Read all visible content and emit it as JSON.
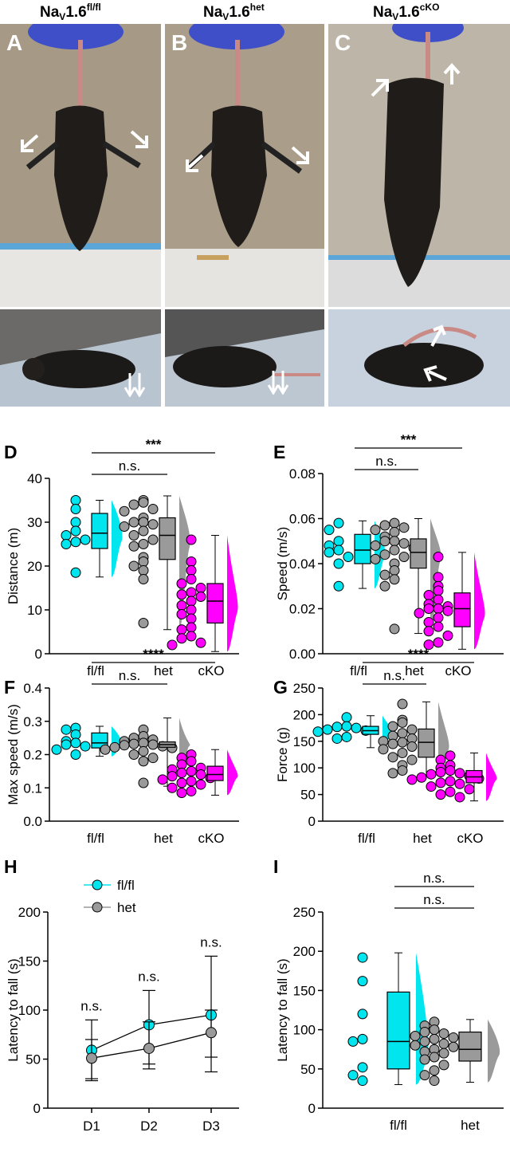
{
  "headers": [
    {
      "base": "Na",
      "sub": "V",
      "mid": "1.6",
      "sup": "fl/fl"
    },
    {
      "base": "Na",
      "sub": "V",
      "mid": "1.6",
      "sup": "het"
    },
    {
      "base": "Na",
      "sub": "V",
      "mid": "1.6",
      "sup": "cKO"
    }
  ],
  "photo_panels": [
    "A",
    "B",
    "C"
  ],
  "colors": {
    "flfl": "#00e5ee",
    "het": "#9a9a9a",
    "cko": "#ff00ff",
    "arrow": "#ffffff"
  },
  "chart_data": [
    {
      "panel": "D",
      "type": "scatter+box+violin",
      "ylabel": "Distance (m)",
      "ylim": [
        0,
        40
      ],
      "yticks": [
        0,
        10,
        20,
        30,
        40
      ],
      "categories": [
        "fl/fl",
        "het",
        "cKO"
      ],
      "series": [
        {
          "name": "fl/fl",
          "values": [
            35,
            33,
            30,
            28,
            27,
            26,
            25.5,
            25,
            18.5
          ],
          "box": {
            "min": 17.5,
            "q1": 24,
            "median": 27.5,
            "q3": 32,
            "max": 35
          }
        },
        {
          "name": "het",
          "values": [
            35,
            34.5,
            34,
            33,
            32.5,
            31,
            30,
            30,
            29.5,
            29,
            28,
            27,
            26,
            25,
            24.5,
            22,
            21,
            20,
            19,
            17,
            7
          ],
          "box": {
            "min": 5.5,
            "q1": 21.5,
            "median": 27,
            "q3": 31,
            "max": 36
          }
        },
        {
          "name": "cKO",
          "values": [
            26,
            21,
            19,
            17,
            16,
            15,
            14,
            13.5,
            13,
            12,
            11,
            10,
            9,
            8,
            6,
            5.5,
            4,
            3.5,
            2.5,
            2
          ],
          "box": {
            "min": 0.5,
            "q1": 7,
            "median": 12,
            "q3": 16,
            "max": 27
          }
        }
      ],
      "annotations": [
        {
          "text": "***",
          "from": "fl/fl",
          "to": "cKO",
          "level": 1
        },
        {
          "text": "n.s.",
          "from": "fl/fl",
          "to": "het",
          "level": 0
        }
      ]
    },
    {
      "panel": "E",
      "type": "scatter+box+violin",
      "ylabel": "Speed (m/s)",
      "ylim": [
        0,
        0.08
      ],
      "yticks": [
        0.0,
        0.02,
        0.04,
        0.06,
        0.08
      ],
      "categories": [
        "fl/fl",
        "het",
        "cKO"
      ],
      "series": [
        {
          "name": "fl/fl",
          "values": [
            0.058,
            0.055,
            0.05,
            0.048,
            0.046,
            0.045,
            0.043,
            0.04,
            0.03
          ],
          "box": {
            "min": 0.029,
            "q1": 0.04,
            "median": 0.046,
            "q3": 0.053,
            "max": 0.059
          }
        },
        {
          "name": "het",
          "values": [
            0.058,
            0.057,
            0.056,
            0.055,
            0.054,
            0.052,
            0.05,
            0.05,
            0.049,
            0.048,
            0.047,
            0.046,
            0.044,
            0.043,
            0.042,
            0.04,
            0.037,
            0.035,
            0.033,
            0.03,
            0.011
          ],
          "box": {
            "min": 0.009,
            "q1": 0.038,
            "median": 0.045,
            "q3": 0.051,
            "max": 0.06
          }
        },
        {
          "name": "cKO",
          "values": [
            0.043,
            0.034,
            0.03,
            0.028,
            0.026,
            0.024,
            0.022,
            0.021,
            0.02,
            0.02,
            0.019,
            0.018,
            0.016,
            0.014,
            0.012,
            0.01,
            0.008,
            0.005,
            0.004
          ],
          "box": {
            "min": 0.002,
            "q1": 0.012,
            "median": 0.02,
            "q3": 0.027,
            "max": 0.045
          }
        }
      ],
      "annotations": [
        {
          "text": "***",
          "from": "fl/fl",
          "to": "cKO",
          "level": 1
        },
        {
          "text": "n.s.",
          "from": "fl/fl",
          "to": "het",
          "level": 0
        }
      ]
    },
    {
      "panel": "F",
      "type": "scatter+box+violin",
      "ylabel": "Max speed (m/s)",
      "ylim": [
        0,
        0.4
      ],
      "yticks": [
        0.0,
        0.1,
        0.2,
        0.3,
        0.4
      ],
      "categories": [
        "fl/fl",
        "het",
        "cKO"
      ],
      "series": [
        {
          "name": "fl/fl",
          "values": [
            0.28,
            0.275,
            0.26,
            0.24,
            0.235,
            0.23,
            0.225,
            0.215,
            0.2
          ],
          "box": {
            "min": 0.195,
            "q1": 0.22,
            "median": 0.235,
            "q3": 0.265,
            "max": 0.285
          }
        },
        {
          "name": "het",
          "values": [
            0.275,
            0.255,
            0.25,
            0.245,
            0.24,
            0.235,
            0.232,
            0.23,
            0.228,
            0.225,
            0.222,
            0.22,
            0.215,
            0.21,
            0.2,
            0.19,
            0.18,
            0.115
          ],
          "box": {
            "min": 0.105,
            "q1": 0.222,
            "median": 0.23,
            "q3": 0.238,
            "max": 0.31
          }
        },
        {
          "name": "cKO",
          "values": [
            0.2,
            0.19,
            0.18,
            0.17,
            0.16,
            0.155,
            0.15,
            0.145,
            0.14,
            0.135,
            0.13,
            0.125,
            0.12,
            0.115,
            0.11,
            0.1,
            0.09,
            0.085
          ],
          "box": {
            "min": 0.078,
            "q1": 0.122,
            "median": 0.14,
            "q3": 0.165,
            "max": 0.215
          }
        }
      ],
      "annotations": [
        {
          "text": "****",
          "from": "fl/fl",
          "to": "cKO",
          "level": 1
        },
        {
          "text": "n.s.",
          "from": "fl/fl",
          "to": "het",
          "level": 0
        }
      ]
    },
    {
      "panel": "G",
      "type": "scatter+box+violin",
      "ylabel": "Force (g)",
      "ylim": [
        0,
        250
      ],
      "yticks": [
        0,
        50,
        100,
        150,
        200,
        250
      ],
      "categories": [
        "fl/fl",
        "het",
        "cKO"
      ],
      "series": [
        {
          "name": "fl/fl",
          "values": [
            195,
            178,
            177,
            175,
            172,
            170,
            168,
            158,
            155
          ],
          "box": {
            "min": 138,
            "q1": 163,
            "median": 170,
            "q3": 178,
            "max": 198
          }
        },
        {
          "name": "het",
          "values": [
            220,
            190,
            185,
            178,
            172,
            165,
            160,
            155,
            150,
            148,
            145,
            140,
            135,
            128,
            120,
            115,
            105,
            95,
            90
          ],
          "box": {
            "min": 87,
            "q1": 120,
            "median": 148,
            "q3": 173,
            "max": 224
          }
        },
        {
          "name": "cKO",
          "values": [
            123,
            115,
            105,
            100,
            95,
            92,
            90,
            88,
            85,
            82,
            80,
            78,
            75,
            72,
            70,
            65,
            60,
            55,
            50,
            45
          ],
          "box": {
            "min": 38,
            "q1": 72,
            "median": 83,
            "q3": 95,
            "max": 128
          }
        }
      ],
      "annotations": [
        {
          "text": "****",
          "from": "fl/fl",
          "to": "cKO",
          "level": 1
        },
        {
          "text": "n.s.",
          "from": "fl/fl",
          "to": "het",
          "level": 0
        }
      ]
    },
    {
      "panel": "H",
      "type": "line",
      "ylabel": "Latency to fall (s)",
      "ylim": [
        0,
        200
      ],
      "yticks": [
        0,
        50,
        100,
        150,
        200
      ],
      "x": [
        "D1",
        "D2",
        "D3"
      ],
      "series": [
        {
          "name": "fl/fl",
          "values": [
            59,
            85,
            95
          ],
          "err_low": [
            30,
            45,
            52
          ],
          "err_high": [
            90,
            120,
            155
          ]
        },
        {
          "name": "het",
          "values": [
            51,
            61,
            77
          ],
          "err_low": [
            28,
            40,
            37
          ],
          "err_high": [
            70,
            88,
            100
          ]
        }
      ],
      "point_labels": [
        "n.s.",
        "n.s.",
        "n.s."
      ],
      "legend": "top-left"
    },
    {
      "panel": "I",
      "type": "scatter+box+violin",
      "ylabel": "Latency to fall (s)",
      "ylim": [
        0,
        250
      ],
      "yticks": [
        0,
        50,
        100,
        150,
        200,
        250
      ],
      "categories": [
        "fl/fl",
        "het"
      ],
      "series": [
        {
          "name": "fl/fl",
          "values": [
            192,
            162,
            120,
            88,
            85,
            52,
            42,
            35
          ],
          "box": {
            "min": 30,
            "q1": 50,
            "median": 85,
            "q3": 148,
            "max": 198
          }
        },
        {
          "name": "het",
          "values": [
            110,
            105,
            100,
            97,
            95,
            92,
            90,
            88,
            85,
            82,
            80,
            78,
            75,
            72,
            70,
            65,
            62,
            55,
            48,
            42,
            35
          ],
          "box": {
            "min": 33,
            "q1": 60,
            "median": 75,
            "q3": 97,
            "max": 113
          }
        }
      ],
      "annotations": [
        {
          "text": "n.s.",
          "from": "fl/fl",
          "to": "het",
          "level": 1
        },
        {
          "text": "n.s.",
          "from": "fl/fl",
          "to": "het",
          "level": 0
        }
      ]
    }
  ]
}
